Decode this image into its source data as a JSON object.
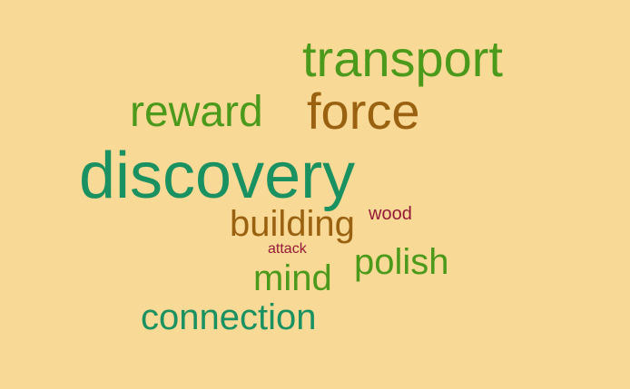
{
  "background_color": "#f8d995",
  "words": {
    "transport": {
      "text": "transport",
      "color": "#4c9a1c"
    },
    "reward": {
      "text": "reward",
      "color": "#4c9a1c"
    },
    "force": {
      "text": "force",
      "color": "#9a6210"
    },
    "discovery": {
      "text": "discovery",
      "color": "#1a9161"
    },
    "building": {
      "text": "building",
      "color": "#9a6210"
    },
    "wood": {
      "text": "wood",
      "color": "#951937"
    },
    "attack": {
      "text": "attack",
      "color": "#951937"
    },
    "polish": {
      "text": "polish",
      "color": "#4c9a1c"
    },
    "mind": {
      "text": "mind",
      "color": "#4c9a1c"
    },
    "connection": {
      "text": "connection",
      "color": "#1a9161"
    }
  }
}
